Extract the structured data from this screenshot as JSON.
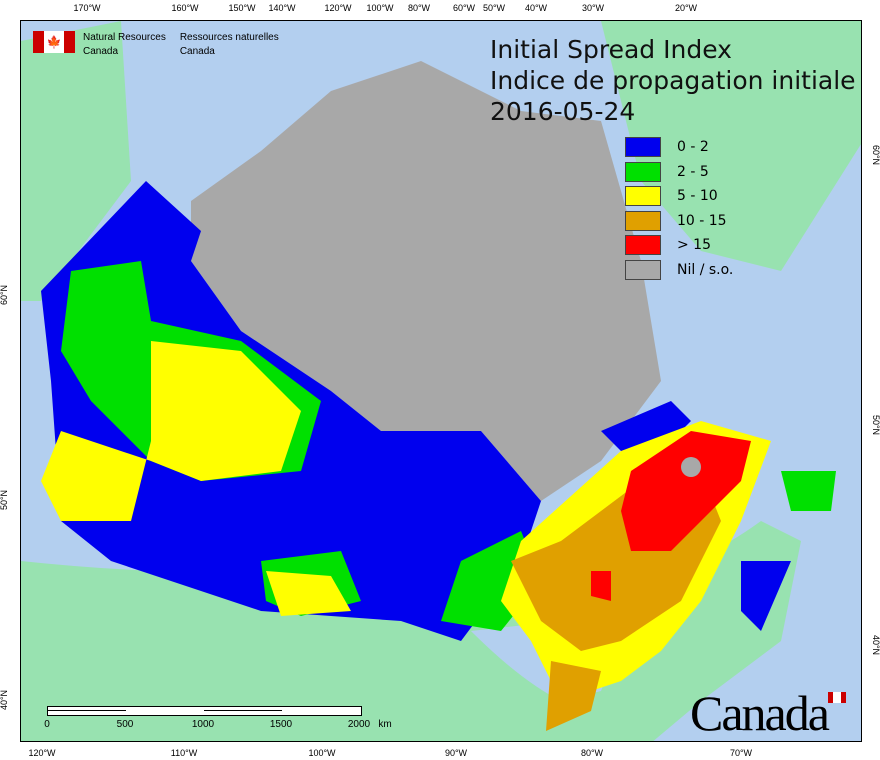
{
  "title": {
    "line1": "Initial Spread Index",
    "line2": "Indice de propagation initiale",
    "date": "2016-05-24"
  },
  "agency": {
    "en_line1": "Natural Resources",
    "en_line2": "Canada",
    "fr_line1": "Ressources naturelles",
    "fr_line2": "Canada"
  },
  "legend": [
    {
      "label": "0 - 2",
      "color": "#0000ee"
    },
    {
      "label": "2 - 5",
      "color": "#00e000"
    },
    {
      "label": "5 - 10",
      "color": "#ffff00"
    },
    {
      "label": "10 - 15",
      "color": "#e0a000"
    },
    {
      "label": "> 15",
      "color": "#ff0000"
    },
    {
      "label": "Nil / s.o.",
      "color": "#a8a8a8"
    }
  ],
  "axes": {
    "top": [
      "170°W",
      "160°W",
      "150°W",
      "140°W",
      "120°W",
      "100°W",
      "80°W",
      "60°W",
      "50°W",
      "40°W",
      "30°W",
      "20°W"
    ],
    "bottom": [
      "120°W",
      "110°W",
      "100°W",
      "90°W",
      "80°W",
      "70°W"
    ],
    "left": [
      "60°N",
      "50°N",
      "40°N"
    ],
    "right": [
      "60°N",
      "50°N",
      "40°N"
    ]
  },
  "scale_bar": {
    "labels": [
      "0",
      "500",
      "1000",
      "1500",
      "2000"
    ],
    "unit": "km"
  },
  "wordmark": "Canada"
}
